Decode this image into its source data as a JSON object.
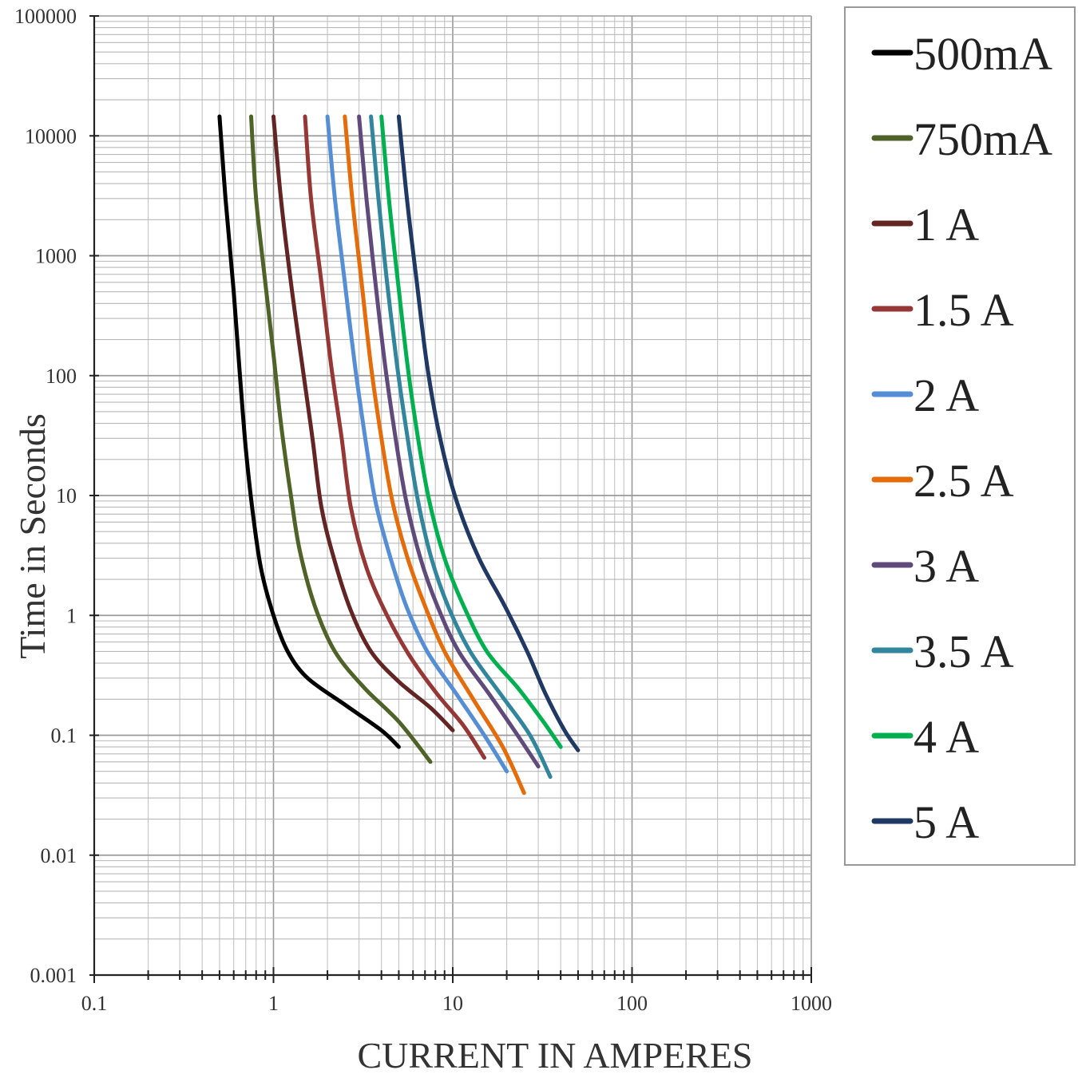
{
  "chart_data": {
    "type": "line",
    "xlabel": "CURRENT IN AMPERES",
    "ylabel": "Time in Seconds",
    "x_scale": "log",
    "y_scale": "log",
    "xlim": [
      0.1,
      1000
    ],
    "ylim": [
      0.001,
      100000
    ],
    "x_tick_labels": [
      "0.1",
      "1",
      "10",
      "100",
      "1000"
    ],
    "y_tick_labels": [
      "0.001",
      "0.01",
      "0.1",
      "1",
      "10",
      "100",
      "1000",
      "10000",
      "100000"
    ],
    "grid": true,
    "legend_position": "right",
    "series": [
      {
        "name": "500mA",
        "color": "#000000",
        "points": [
          [
            0.5,
            14500
          ],
          [
            0.54,
            3000
          ],
          [
            0.6,
            500
          ],
          [
            0.65,
            100
          ],
          [
            0.7,
            25
          ],
          [
            0.76,
            8
          ],
          [
            0.85,
            2.5
          ],
          [
            1.0,
            1.0
          ],
          [
            1.2,
            0.5
          ],
          [
            1.55,
            0.3
          ],
          [
            2.5,
            0.18
          ],
          [
            4.0,
            0.11
          ],
          [
            5.0,
            0.08
          ]
        ]
      },
      {
        "name": "750mA",
        "color": "#4f6228",
        "points": [
          [
            0.75,
            14500
          ],
          [
            0.8,
            3000
          ],
          [
            0.9,
            600
          ],
          [
            1.0,
            150
          ],
          [
            1.1,
            40
          ],
          [
            1.25,
            10
          ],
          [
            1.4,
            3.5
          ],
          [
            1.7,
            1.2
          ],
          [
            2.2,
            0.5
          ],
          [
            3.2,
            0.25
          ],
          [
            5.0,
            0.13
          ],
          [
            7.5,
            0.06
          ]
        ]
      },
      {
        "name": "1 A",
        "color": "#632523",
        "points": [
          [
            1.0,
            14500
          ],
          [
            1.1,
            3000
          ],
          [
            1.25,
            600
          ],
          [
            1.45,
            120
          ],
          [
            1.65,
            30
          ],
          [
            1.85,
            8
          ],
          [
            2.2,
            2.8
          ],
          [
            2.7,
            1.1
          ],
          [
            3.5,
            0.5
          ],
          [
            5.0,
            0.28
          ],
          [
            7.5,
            0.17
          ],
          [
            10.0,
            0.11
          ]
        ]
      },
      {
        "name": "1.5 A",
        "color": "#953735",
        "points": [
          [
            1.5,
            14500
          ],
          [
            1.62,
            3000
          ],
          [
            1.85,
            600
          ],
          [
            2.1,
            120
          ],
          [
            2.4,
            30
          ],
          [
            2.7,
            8
          ],
          [
            3.3,
            2.5
          ],
          [
            4.3,
            1.0
          ],
          [
            5.8,
            0.45
          ],
          [
            8.2,
            0.22
          ],
          [
            11.5,
            0.12
          ],
          [
            15.0,
            0.065
          ]
        ]
      },
      {
        "name": "2 A",
        "color": "#558ed5",
        "points": [
          [
            2.0,
            14500
          ],
          [
            2.2,
            3000
          ],
          [
            2.5,
            600
          ],
          [
            2.85,
            120
          ],
          [
            3.25,
            30
          ],
          [
            3.7,
            9
          ],
          [
            4.5,
            3.0
          ],
          [
            5.5,
            1.2
          ],
          [
            7.2,
            0.5
          ],
          [
            10.5,
            0.22
          ],
          [
            15.0,
            0.1
          ],
          [
            20.0,
            0.05
          ]
        ]
      },
      {
        "name": "2.5 A",
        "color": "#e46c0a",
        "points": [
          [
            2.5,
            14500
          ],
          [
            2.75,
            3000
          ],
          [
            3.1,
            600
          ],
          [
            3.5,
            120
          ],
          [
            4.0,
            30
          ],
          [
            4.6,
            9
          ],
          [
            5.6,
            3.0
          ],
          [
            7.0,
            1.2
          ],
          [
            9.0,
            0.5
          ],
          [
            13.0,
            0.2
          ],
          [
            19.0,
            0.08
          ],
          [
            25.0,
            0.033
          ]
        ]
      },
      {
        "name": "3 A",
        "color": "#604a7b",
        "points": [
          [
            3.0,
            14500
          ],
          [
            3.3,
            3000
          ],
          [
            3.7,
            600
          ],
          [
            4.2,
            120
          ],
          [
            4.8,
            30
          ],
          [
            5.5,
            9
          ],
          [
            6.6,
            3.0
          ],
          [
            8.2,
            1.2
          ],
          [
            10.8,
            0.5
          ],
          [
            16.0,
            0.22
          ],
          [
            23.0,
            0.1
          ],
          [
            30.0,
            0.055
          ]
        ]
      },
      {
        "name": "3.5 A",
        "color": "#31859c",
        "points": [
          [
            3.5,
            14500
          ],
          [
            3.85,
            3000
          ],
          [
            4.3,
            600
          ],
          [
            4.9,
            120
          ],
          [
            5.6,
            30
          ],
          [
            6.4,
            9
          ],
          [
            7.6,
            3.0
          ],
          [
            9.4,
            1.2
          ],
          [
            12.5,
            0.5
          ],
          [
            18.5,
            0.22
          ],
          [
            27.0,
            0.1
          ],
          [
            35.0,
            0.045
          ]
        ]
      },
      {
        "name": "4 A",
        "color": "#00b050",
        "points": [
          [
            4.0,
            14500
          ],
          [
            4.4,
            3000
          ],
          [
            4.95,
            600
          ],
          [
            5.6,
            120
          ],
          [
            6.4,
            30
          ],
          [
            7.4,
            9
          ],
          [
            9.0,
            3.0
          ],
          [
            11.5,
            1.2
          ],
          [
            15.5,
            0.5
          ],
          [
            23.0,
            0.25
          ],
          [
            32.0,
            0.13
          ],
          [
            40.0,
            0.08
          ]
        ]
      },
      {
        "name": "5 A",
        "color": "#1f3864",
        "points": [
          [
            5.0,
            14500
          ],
          [
            5.55,
            3000
          ],
          [
            6.3,
            600
          ],
          [
            7.2,
            120
          ],
          [
            8.5,
            30
          ],
          [
            10.5,
            9
          ],
          [
            14.0,
            3.0
          ],
          [
            19.5,
            1.2
          ],
          [
            26.0,
            0.5
          ],
          [
            33.0,
            0.22
          ],
          [
            42.0,
            0.11
          ],
          [
            50.0,
            0.075
          ]
        ]
      }
    ]
  }
}
